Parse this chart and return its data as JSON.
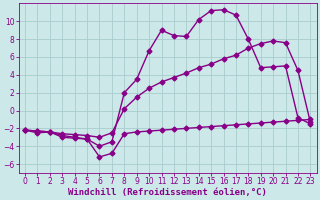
{
  "xlabel": "Windchill (Refroidissement éolien,°C)",
  "bg_color": "#cce8e8",
  "grid_color": "#aacccc",
  "line_color": "#880088",
  "xlim": [
    -0.5,
    23.5
  ],
  "ylim": [
    -7,
    12
  ],
  "xticks": [
    0,
    1,
    2,
    3,
    4,
    5,
    6,
    7,
    8,
    9,
    10,
    11,
    12,
    13,
    14,
    15,
    16,
    17,
    18,
    19,
    20,
    21,
    22,
    23
  ],
  "yticks": [
    -6,
    -4,
    -2,
    0,
    2,
    4,
    6,
    8,
    10
  ],
  "curve1_x": [
    0,
    1,
    2,
    3,
    4,
    5,
    6,
    7,
    8,
    9,
    10,
    11,
    12,
    13,
    14,
    15,
    16,
    17,
    18,
    19,
    20,
    21,
    22,
    23
  ],
  "curve1_y": [
    -2.2,
    -2.5,
    -2.4,
    -3.0,
    -3.1,
    -3.2,
    -5.2,
    -4.8,
    -2.6,
    -2.4,
    -2.3,
    -2.2,
    -2.1,
    -2.0,
    -1.9,
    -1.8,
    -1.7,
    -1.6,
    -1.5,
    -1.4,
    -1.3,
    -1.2,
    -1.1,
    -1.0
  ],
  "curve2_x": [
    0,
    1,
    2,
    3,
    4,
    5,
    6,
    7,
    8,
    9,
    10,
    11,
    12,
    13,
    14,
    15,
    16,
    17,
    18,
    19,
    20,
    21,
    22,
    23
  ],
  "curve2_y": [
    -2.2,
    -2.3,
    -2.4,
    -2.8,
    -3.0,
    -3.2,
    -4.0,
    -3.5,
    2.0,
    3.5,
    6.7,
    9.0,
    8.4,
    8.3,
    10.2,
    11.2,
    11.3,
    10.7,
    8.0,
    4.8,
    4.9,
    5.0,
    -0.8,
    -1.5
  ],
  "curve3_x": [
    0,
    1,
    2,
    3,
    4,
    5,
    6,
    7,
    8,
    9,
    10,
    11,
    12,
    13,
    14,
    15,
    16,
    17,
    18,
    19,
    20,
    21,
    22,
    23
  ],
  "curve3_y": [
    -2.2,
    -2.3,
    -2.4,
    -2.6,
    -2.7,
    -2.8,
    -3.0,
    -2.5,
    0.2,
    1.5,
    2.5,
    3.2,
    3.7,
    4.2,
    4.8,
    5.2,
    5.8,
    6.2,
    7.0,
    7.5,
    7.8,
    7.6,
    4.5,
    -1.3
  ],
  "marker": "D",
  "markersize": 2.5,
  "linewidth": 1.0,
  "xlabel_fontsize": 6.5,
  "tick_fontsize": 5.5
}
